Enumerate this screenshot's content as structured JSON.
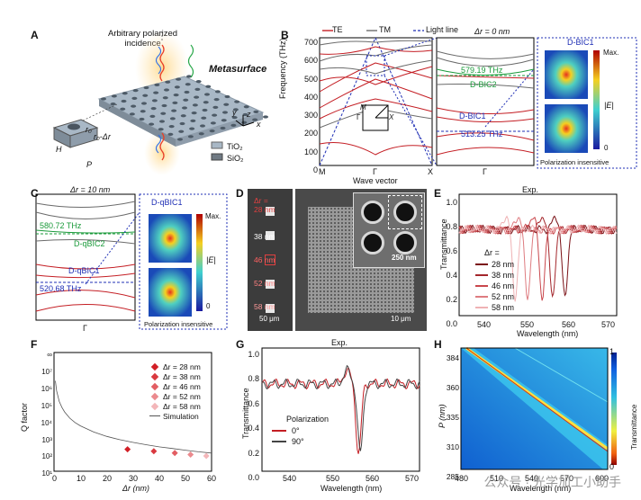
{
  "panels": {
    "A": {
      "label": "A",
      "incidence": "Arbitrary polarized incidence",
      "incidence_l1": "Arbitrary polarized",
      "incidence_l2": "incidence",
      "metasurface": "Metasurface",
      "axes": [
        "y",
        "z",
        "x"
      ],
      "params": {
        "r0": "r₀",
        "r_dr": "r₀-Δr",
        "H": "H",
        "P": "P"
      },
      "materials": [
        "TiO₂",
        "SiO₂"
      ],
      "colors": {
        "tio2": "#a9b8c6",
        "sio2": "#707a84"
      }
    },
    "B": {
      "label": "B",
      "legend": [
        "TE",
        "TM",
        "Light line"
      ],
      "ylabel": "Frequency (THz)",
      "xlabel": "Wave vector",
      "yticks": [
        "700",
        "600",
        "500",
        "400",
        "300",
        "200",
        "100",
        "0"
      ],
      "xticks": [
        "M",
        "Γ",
        "X"
      ],
      "zoom_title": "Δr = 0 nm",
      "zoom_xtick": "Γ",
      "f1": "579.19 THz",
      "f2": "513.25 THz",
      "bic2": "D-BIC2",
      "bic1": "D-BIC1",
      "map_title": "D-BIC1",
      "max": "Max.",
      "zero": "0",
      "field": "|E|",
      "pol": "Polarization insensitive",
      "bz": {
        "M": "M",
        "G": "Γ",
        "X": "X"
      },
      "colors": {
        "te": "#c41e24",
        "tm": "#6b6b6b",
        "light": "#1f2fb5",
        "bic2": "#1a9a3a"
      }
    },
    "C": {
      "label": "C",
      "title": "Δr = 10 nm",
      "f1": "580.72 THz",
      "f2": "520.68 THz",
      "qbic2": "D-qBIC2",
      "qbic1": "D-qBIC1",
      "xtick": "Γ",
      "map_title": "D-qBIC1",
      "max": "Max.",
      "zero": "0",
      "field": "|E|",
      "pol": "Polarization insensitive"
    },
    "D": {
      "label": "D",
      "dr_label": "Δr =",
      "dr_values": [
        "28 nm",
        "38 nm",
        "46 nm",
        "52 nm",
        "58 nm"
      ],
      "scale1": "50 μm",
      "scale2": "10 μm",
      "scale3": "250 nm"
    },
    "E": {
      "label": "E",
      "title": "Exp.",
      "ylabel": "Transmittance",
      "xlabel": "Wavelength (nm)",
      "yticks": [
        "1.0",
        "0.8",
        "0.6",
        "0.4",
        "0.2",
        "0.0"
      ],
      "xticks": [
        "540",
        "550",
        "560",
        "570"
      ],
      "legend_title": "Δr =",
      "legend": [
        "28 nm",
        "38 nm",
        "46 nm",
        "52 nm",
        "58 nm"
      ],
      "colors": [
        "#7a1015",
        "#a3262b",
        "#c9474c",
        "#de7c80",
        "#efb2b4"
      ],
      "dips_nm": [
        558.5,
        555.5,
        553.0,
        549.5,
        546.5
      ]
    },
    "F": {
      "label": "F",
      "ylabel": "Q factor",
      "xlabel": "Δr (nm)",
      "yticks": [
        "∞",
        "10⁷",
        "10⁶",
        "10⁵",
        "10⁴",
        "10³",
        "10²",
        "10¹"
      ],
      "xticks": [
        "0",
        "10",
        "20",
        "30",
        "40",
        "50",
        "60"
      ],
      "legend": [
        "Δr = 28 nm",
        "Δr = 38 nm",
        "Δr = 46 nm",
        "Δr = 52 nm",
        "Δr = 58 nm",
        "Simulation"
      ],
      "colors": [
        "#d21f26",
        "#d9393f",
        "#e25e63",
        "#eb8a8e",
        "#f3b6b9"
      ]
    },
    "G": {
      "label": "G",
      "title": "Exp.",
      "ylabel": "Transmittance",
      "xlabel": "Wavelength (nm)",
      "yticks": [
        "1.0",
        "0.8",
        "0.6",
        "0.4",
        "0.2",
        "0.0"
      ],
      "xticks": [
        "540",
        "550",
        "560",
        "570"
      ],
      "legend_title": "Polarization",
      "legend": [
        "0°",
        "90°"
      ],
      "colors": [
        "#c41e24",
        "#444444"
      ]
    },
    "H": {
      "label": "H",
      "ylabel": "P (nm)",
      "xlabel": "Wavelength (nm)",
      "yticks": [
        "384",
        "360",
        "335",
        "310",
        "285"
      ],
      "xticks": [
        "480",
        "510",
        "540",
        "570",
        "600"
      ],
      "cbar": [
        "1",
        "0"
      ],
      "cbar_label": "Transmittance"
    }
  },
  "chart_data": [
    {
      "type": "scatter",
      "panel": "F",
      "title": "",
      "xlabel": "Δr (nm)",
      "ylabel": "Q factor",
      "xlim": [
        0,
        60
      ],
      "ylim_log10": [
        1,
        7
      ],
      "series": [
        {
          "name": "Δr = 28 nm",
          "x": [
            28
          ],
          "y": [
            180
          ]
        },
        {
          "name": "Δr = 38 nm",
          "x": [
            38
          ],
          "y": [
            140
          ]
        },
        {
          "name": "Δr = 46 nm",
          "x": [
            46
          ],
          "y": [
            110
          ]
        },
        {
          "name": "Δr = 52 nm",
          "x": [
            52
          ],
          "y": [
            90
          ]
        },
        {
          "name": "Δr = 58 nm",
          "x": [
            58
          ],
          "y": [
            75
          ]
        },
        {
          "name": "Simulation",
          "type": "line",
          "x": [
            0.5,
            1,
            2,
            3,
            4,
            6,
            8,
            10,
            15,
            20,
            25,
            30,
            35,
            40,
            45,
            50,
            55,
            60
          ],
          "y": [
            1500000,
            400000,
            100000,
            45000,
            25000,
            11000,
            6200,
            4000,
            1800,
            1000,
            640,
            450,
            330,
            250,
            200,
            160,
            130,
            110
          ]
        }
      ]
    }
  ],
  "watermark": "公众号 · 光学加工小助手"
}
